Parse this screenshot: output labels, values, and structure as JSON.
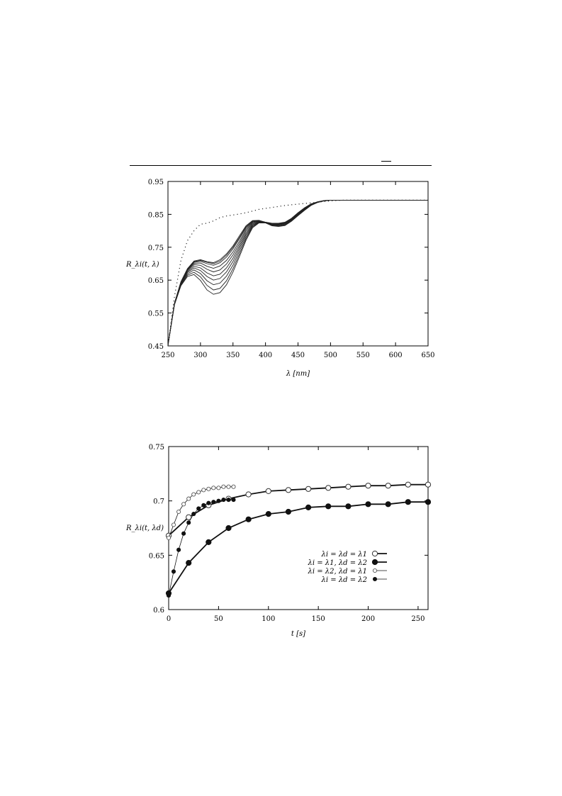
{
  "chart_data": [
    {
      "type": "line",
      "title": "",
      "xlabel": "λ [nm]",
      "ylabel": "R_λi(t, λ)",
      "xlim": [
        250,
        650
      ],
      "ylim": [
        0.45,
        0.95
      ],
      "xticks": [
        "250",
        "300",
        "350",
        "400",
        "450",
        "500",
        "550",
        "600",
        "650"
      ],
      "yticks": [
        "0.45",
        "0.55",
        "0.65",
        "0.75",
        "0.85",
        "0.95"
      ],
      "grid": false,
      "x": [
        250,
        260,
        270,
        280,
        290,
        300,
        310,
        320,
        330,
        340,
        350,
        360,
        370,
        380,
        390,
        400,
        410,
        420,
        430,
        440,
        450,
        460,
        470,
        480,
        490,
        500,
        510,
        520,
        530,
        540,
        550,
        560,
        570,
        580,
        590,
        600,
        610,
        620,
        630,
        640,
        650
      ],
      "series": [
        {
          "style": "solid",
          "values": [
            0.452,
            0.58,
            0.645,
            0.685,
            0.708,
            0.712,
            0.706,
            0.703,
            0.712,
            0.73,
            0.754,
            0.785,
            0.815,
            0.831,
            0.832,
            0.826,
            0.823,
            0.823,
            0.826,
            0.838,
            0.855,
            0.87,
            0.882,
            0.888,
            0.892,
            0.893,
            0.893,
            0.893,
            0.893,
            0.893,
            0.893,
            0.893,
            0.893,
            0.893,
            0.893,
            0.893,
            0.893,
            0.893,
            0.893,
            0.893,
            0.893
          ]
        },
        {
          "style": "solid",
          "values": [
            0.452,
            0.58,
            0.645,
            0.684,
            0.706,
            0.71,
            0.704,
            0.7,
            0.708,
            0.726,
            0.75,
            0.78,
            0.812,
            0.829,
            0.831,
            0.826,
            0.822,
            0.822,
            0.825,
            0.837,
            0.854,
            0.869,
            0.881,
            0.888,
            0.892,
            0.893,
            0.893,
            0.893,
            0.893,
            0.893,
            0.893,
            0.893,
            0.893,
            0.893,
            0.893,
            0.893,
            0.893,
            0.893,
            0.893,
            0.893,
            0.893
          ]
        },
        {
          "style": "solid",
          "values": [
            0.452,
            0.58,
            0.644,
            0.683,
            0.704,
            0.707,
            0.7,
            0.695,
            0.703,
            0.72,
            0.745,
            0.776,
            0.809,
            0.828,
            0.831,
            0.826,
            0.822,
            0.821,
            0.824,
            0.836,
            0.853,
            0.868,
            0.881,
            0.888,
            0.892,
            0.893,
            0.893,
            0.893,
            0.893,
            0.893,
            0.893,
            0.893,
            0.893,
            0.893,
            0.893,
            0.893,
            0.893,
            0.893,
            0.893,
            0.893,
            0.893
          ]
        },
        {
          "style": "solid",
          "values": [
            0.452,
            0.579,
            0.643,
            0.681,
            0.701,
            0.702,
            0.692,
            0.686,
            0.693,
            0.71,
            0.736,
            0.768,
            0.804,
            0.826,
            0.83,
            0.826,
            0.821,
            0.82,
            0.823,
            0.835,
            0.852,
            0.867,
            0.88,
            0.888,
            0.891,
            0.893,
            0.893,
            0.893,
            0.893,
            0.893,
            0.893,
            0.893,
            0.893,
            0.893,
            0.893,
            0.893,
            0.893,
            0.893,
            0.893,
            0.893,
            0.893
          ]
        },
        {
          "style": "solid",
          "values": [
            0.452,
            0.579,
            0.642,
            0.679,
            0.697,
            0.695,
            0.683,
            0.675,
            0.681,
            0.699,
            0.727,
            0.761,
            0.799,
            0.824,
            0.829,
            0.825,
            0.82,
            0.819,
            0.822,
            0.834,
            0.851,
            0.867,
            0.88,
            0.887,
            0.891,
            0.893,
            0.893,
            0.893,
            0.893,
            0.893,
            0.893,
            0.893,
            0.893,
            0.893,
            0.893,
            0.893,
            0.893,
            0.893,
            0.893,
            0.893,
            0.893
          ]
        },
        {
          "style": "solid",
          "values": [
            0.452,
            0.578,
            0.641,
            0.676,
            0.692,
            0.687,
            0.672,
            0.663,
            0.668,
            0.687,
            0.717,
            0.754,
            0.793,
            0.821,
            0.828,
            0.825,
            0.819,
            0.818,
            0.821,
            0.833,
            0.85,
            0.866,
            0.879,
            0.887,
            0.891,
            0.893,
            0.893,
            0.893,
            0.893,
            0.893,
            0.893,
            0.893,
            0.893,
            0.893,
            0.893,
            0.893,
            0.893,
            0.893,
            0.893,
            0.893,
            0.893
          ]
        },
        {
          "style": "solid",
          "values": [
            0.452,
            0.578,
            0.639,
            0.673,
            0.687,
            0.679,
            0.661,
            0.65,
            0.655,
            0.675,
            0.707,
            0.747,
            0.788,
            0.818,
            0.827,
            0.825,
            0.818,
            0.817,
            0.82,
            0.832,
            0.849,
            0.865,
            0.879,
            0.887,
            0.891,
            0.893,
            0.893,
            0.893,
            0.893,
            0.893,
            0.893,
            0.893,
            0.893,
            0.893,
            0.893,
            0.893,
            0.893,
            0.893,
            0.893,
            0.893,
            0.893
          ]
        },
        {
          "style": "solid",
          "values": [
            0.452,
            0.577,
            0.637,
            0.669,
            0.681,
            0.67,
            0.648,
            0.636,
            0.641,
            0.662,
            0.696,
            0.739,
            0.782,
            0.815,
            0.826,
            0.825,
            0.817,
            0.815,
            0.818,
            0.831,
            0.848,
            0.864,
            0.878,
            0.887,
            0.891,
            0.893,
            0.893,
            0.893,
            0.893,
            0.893,
            0.893,
            0.893,
            0.893,
            0.893,
            0.893,
            0.893,
            0.893,
            0.893,
            0.893,
            0.893,
            0.893
          ]
        },
        {
          "style": "solid",
          "values": [
            0.452,
            0.576,
            0.635,
            0.665,
            0.674,
            0.66,
            0.634,
            0.62,
            0.625,
            0.648,
            0.685,
            0.73,
            0.776,
            0.812,
            0.825,
            0.824,
            0.816,
            0.814,
            0.817,
            0.83,
            0.847,
            0.863,
            0.878,
            0.886,
            0.891,
            0.893,
            0.893,
            0.893,
            0.893,
            0.893,
            0.893,
            0.893,
            0.893,
            0.893,
            0.893,
            0.893,
            0.893,
            0.893,
            0.893,
            0.893,
            0.893
          ]
        },
        {
          "style": "solid",
          "values": [
            0.452,
            0.575,
            0.633,
            0.661,
            0.667,
            0.649,
            0.62,
            0.607,
            0.612,
            0.636,
            0.675,
            0.722,
            0.771,
            0.809,
            0.824,
            0.824,
            0.815,
            0.813,
            0.816,
            0.829,
            0.846,
            0.862,
            0.877,
            0.886,
            0.891,
            0.893,
            0.893,
            0.893,
            0.893,
            0.893,
            0.893,
            0.893,
            0.893,
            0.893,
            0.893,
            0.893,
            0.893,
            0.893,
            0.893,
            0.893,
            0.893
          ]
        },
        {
          "style": "dotted",
          "values": [
            0.452,
            0.6,
            0.71,
            0.77,
            0.8,
            0.82,
            0.823,
            0.83,
            0.84,
            0.845,
            0.848,
            0.851,
            0.855,
            0.86,
            0.865,
            0.868,
            0.871,
            0.874,
            0.877,
            0.879,
            0.881,
            0.883,
            0.885,
            0.887,
            0.889,
            0.891,
            0.892,
            0.893,
            0.893,
            0.893,
            0.893,
            0.893,
            0.893,
            0.893,
            0.893,
            0.893,
            0.893,
            0.893,
            0.893,
            0.893,
            0.893
          ]
        }
      ]
    },
    {
      "type": "line",
      "title": "",
      "xlabel": "t [s]",
      "ylabel": "R_λi(t, λd)",
      "xlim": [
        0,
        260
      ],
      "ylim": [
        0.6,
        0.75
      ],
      "xticks": [
        "0",
        "50",
        "100",
        "150",
        "200",
        "250"
      ],
      "yticks": [
        "0.6",
        "0.65",
        "0.7",
        "0.75"
      ],
      "grid": false,
      "legend": "lower-right",
      "series": [
        {
          "name": "λi = λd = λ1",
          "marker": "open-large",
          "line": "thick",
          "x": [
            0,
            20,
            40,
            60,
            80,
            100,
            120,
            140,
            160,
            180,
            200,
            220,
            240,
            260
          ],
          "values": [
            0.668,
            0.685,
            0.696,
            0.702,
            0.706,
            0.709,
            0.71,
            0.711,
            0.712,
            0.713,
            0.714,
            0.714,
            0.715,
            0.715
          ]
        },
        {
          "name": "λi = λ1, λd = λ2",
          "marker": "filled-large",
          "line": "thick",
          "x": [
            0,
            20,
            40,
            60,
            80,
            100,
            120,
            140,
            160,
            180,
            200,
            220,
            240,
            260
          ],
          "values": [
            0.615,
            0.643,
            0.662,
            0.675,
            0.683,
            0.688,
            0.69,
            0.694,
            0.695,
            0.695,
            0.697,
            0.697,
            0.699,
            0.699
          ]
        },
        {
          "name": "λi = λ2, λd = λ1",
          "marker": "open-small",
          "line": "thin",
          "x": [
            0,
            5,
            10,
            15,
            20,
            25,
            30,
            35,
            40,
            45,
            50,
            55,
            60,
            65
          ],
          "values": [
            0.666,
            0.678,
            0.69,
            0.697,
            0.702,
            0.706,
            0.708,
            0.71,
            0.711,
            0.712,
            0.712,
            0.713,
            0.713,
            0.713
          ]
        },
        {
          "name": "λi = λd = λ2",
          "marker": "filled-small",
          "line": "thin",
          "x": [
            0,
            5,
            10,
            15,
            20,
            25,
            30,
            35,
            40,
            45,
            50,
            55,
            60,
            65
          ],
          "values": [
            0.613,
            0.635,
            0.655,
            0.67,
            0.68,
            0.688,
            0.693,
            0.696,
            0.698,
            0.699,
            0.7,
            0.701,
            0.701,
            0.701
          ]
        }
      ]
    }
  ]
}
